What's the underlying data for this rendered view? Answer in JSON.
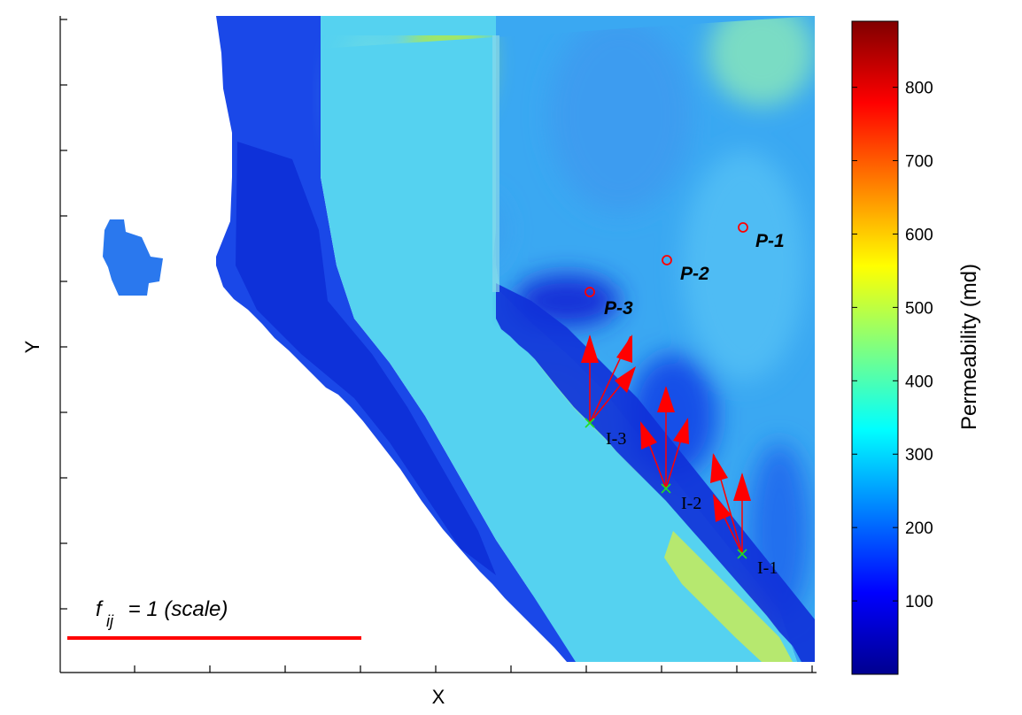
{
  "chart_data": {
    "type": "heatmap",
    "xlabel": "X",
    "ylabel": "Y",
    "colorbar": {
      "label": "Permeability (md)",
      "range": [
        0,
        890
      ],
      "ticks": [
        100,
        200,
        300,
        400,
        500,
        600,
        700,
        800
      ],
      "colormap": "jet"
    },
    "producers": [
      {
        "name": "P-1"
      },
      {
        "name": "P-2"
      },
      {
        "name": "P-3"
      }
    ],
    "injectors": [
      {
        "name": "I-1"
      },
      {
        "name": "I-2"
      },
      {
        "name": "I-3"
      }
    ],
    "scale_label": "f",
    "scale_subscript": "ij",
    "scale_text": " = 1 (scale)",
    "colors": {
      "well_marker": "#ff0000",
      "injector_marker": "#22dd22",
      "arrow": "#ff0000"
    }
  }
}
